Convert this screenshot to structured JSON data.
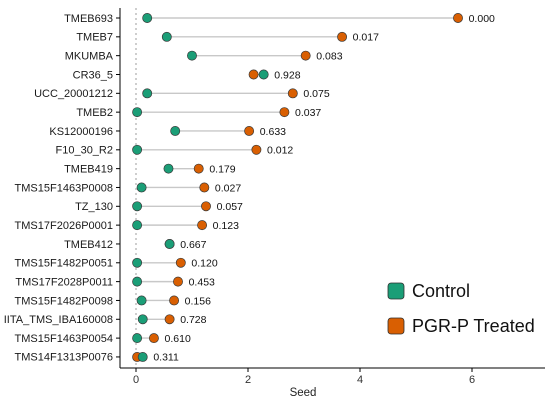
{
  "chart_data": {
    "type": "dumbbell",
    "title": "",
    "xlabel": "Seed",
    "ylabel": "",
    "xlim": [
      -0.45,
      7.4
    ],
    "xticks": [
      0,
      2,
      4,
      6
    ],
    "grid": false,
    "reference_line": {
      "x": 0,
      "style": "dotted"
    },
    "legend": {
      "placement": "bottom-right",
      "entries": [
        {
          "name": "Control",
          "color": "#1b9e77"
        },
        {
          "name": "PGR-P Treated",
          "color": "#d95f02"
        }
      ]
    },
    "categories": [
      "TMEB693",
      "TMEB7",
      "MKUMBA",
      "CR36_5",
      "UCC_20001212",
      "TMEB2",
      "KS12000196",
      "F10_30_R2",
      "TMEB419",
      "TMS15F1463P0008",
      "TZ_130",
      "TMS17F2026P0001",
      "TMEB412",
      "TMS15F1482P0051",
      "TMS17F2028P0011",
      "TMS15F1482P0098",
      "IITA_TMS_IBA160008",
      "TMS15F1463P0054",
      "TMS14F1313P0076"
    ],
    "series": [
      {
        "name": "Control",
        "color": "#1b9e77",
        "values": [
          0.2,
          0.55,
          1.0,
          2.28,
          0.2,
          0.02,
          0.7,
          0.02,
          0.58,
          0.1,
          0.02,
          0.02,
          0.6,
          0.02,
          0.02,
          0.1,
          0.12,
          0.02,
          0.12
        ]
      },
      {
        "name": "PGR-P Treated",
        "color": "#d95f02",
        "values": [
          5.75,
          3.68,
          3.03,
          2.1,
          2.8,
          2.65,
          2.02,
          2.15,
          1.12,
          1.22,
          1.25,
          1.18,
          0.6,
          0.8,
          0.75,
          0.68,
          0.6,
          0.32,
          0.02
        ]
      }
    ],
    "p_values": [
      "0.000",
      "0.017",
      "0.083",
      "0.928",
      "0.075",
      "0.037",
      "0.633",
      "0.012",
      "0.179",
      "0.027",
      "0.057",
      "0.123",
      "0.667",
      "0.120",
      "0.453",
      "0.156",
      "0.728",
      "0.610",
      "0.311"
    ]
  }
}
